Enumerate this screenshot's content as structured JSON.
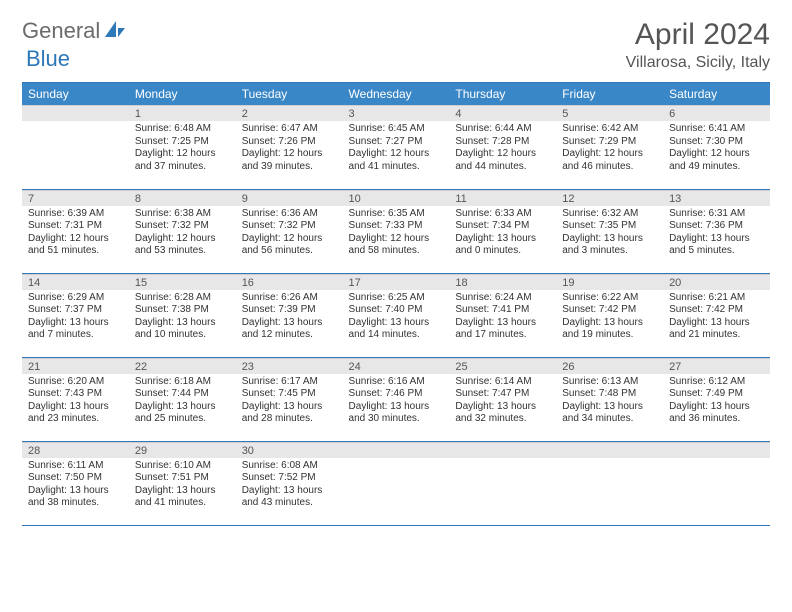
{
  "logo": {
    "text1": "General",
    "text2": "Blue"
  },
  "title": "April 2024",
  "location": "Villarosa, Sicily, Italy",
  "colors": {
    "header_bg": "#3a87c7",
    "border": "#2e77b8",
    "daynum_bg": "#e7e7e7",
    "text": "#333333",
    "logo_gray": "#6b6b6b",
    "logo_blue": "#2e77b8"
  },
  "weekdays": [
    "Sunday",
    "Monday",
    "Tuesday",
    "Wednesday",
    "Thursday",
    "Friday",
    "Saturday"
  ],
  "weeks": [
    [
      {
        "n": "",
        "lines": [
          "",
          "",
          "",
          ""
        ]
      },
      {
        "n": "1",
        "lines": [
          "Sunrise: 6:48 AM",
          "Sunset: 7:25 PM",
          "Daylight: 12 hours",
          "and 37 minutes."
        ]
      },
      {
        "n": "2",
        "lines": [
          "Sunrise: 6:47 AM",
          "Sunset: 7:26 PM",
          "Daylight: 12 hours",
          "and 39 minutes."
        ]
      },
      {
        "n": "3",
        "lines": [
          "Sunrise: 6:45 AM",
          "Sunset: 7:27 PM",
          "Daylight: 12 hours",
          "and 41 minutes."
        ]
      },
      {
        "n": "4",
        "lines": [
          "Sunrise: 6:44 AM",
          "Sunset: 7:28 PM",
          "Daylight: 12 hours",
          "and 44 minutes."
        ]
      },
      {
        "n": "5",
        "lines": [
          "Sunrise: 6:42 AM",
          "Sunset: 7:29 PM",
          "Daylight: 12 hours",
          "and 46 minutes."
        ]
      },
      {
        "n": "6",
        "lines": [
          "Sunrise: 6:41 AM",
          "Sunset: 7:30 PM",
          "Daylight: 12 hours",
          "and 49 minutes."
        ]
      }
    ],
    [
      {
        "n": "7",
        "lines": [
          "Sunrise: 6:39 AM",
          "Sunset: 7:31 PM",
          "Daylight: 12 hours",
          "and 51 minutes."
        ]
      },
      {
        "n": "8",
        "lines": [
          "Sunrise: 6:38 AM",
          "Sunset: 7:32 PM",
          "Daylight: 12 hours",
          "and 53 minutes."
        ]
      },
      {
        "n": "9",
        "lines": [
          "Sunrise: 6:36 AM",
          "Sunset: 7:32 PM",
          "Daylight: 12 hours",
          "and 56 minutes."
        ]
      },
      {
        "n": "10",
        "lines": [
          "Sunrise: 6:35 AM",
          "Sunset: 7:33 PM",
          "Daylight: 12 hours",
          "and 58 minutes."
        ]
      },
      {
        "n": "11",
        "lines": [
          "Sunrise: 6:33 AM",
          "Sunset: 7:34 PM",
          "Daylight: 13 hours",
          "and 0 minutes."
        ]
      },
      {
        "n": "12",
        "lines": [
          "Sunrise: 6:32 AM",
          "Sunset: 7:35 PM",
          "Daylight: 13 hours",
          "and 3 minutes."
        ]
      },
      {
        "n": "13",
        "lines": [
          "Sunrise: 6:31 AM",
          "Sunset: 7:36 PM",
          "Daylight: 13 hours",
          "and 5 minutes."
        ]
      }
    ],
    [
      {
        "n": "14",
        "lines": [
          "Sunrise: 6:29 AM",
          "Sunset: 7:37 PM",
          "Daylight: 13 hours",
          "and 7 minutes."
        ]
      },
      {
        "n": "15",
        "lines": [
          "Sunrise: 6:28 AM",
          "Sunset: 7:38 PM",
          "Daylight: 13 hours",
          "and 10 minutes."
        ]
      },
      {
        "n": "16",
        "lines": [
          "Sunrise: 6:26 AM",
          "Sunset: 7:39 PM",
          "Daylight: 13 hours",
          "and 12 minutes."
        ]
      },
      {
        "n": "17",
        "lines": [
          "Sunrise: 6:25 AM",
          "Sunset: 7:40 PM",
          "Daylight: 13 hours",
          "and 14 minutes."
        ]
      },
      {
        "n": "18",
        "lines": [
          "Sunrise: 6:24 AM",
          "Sunset: 7:41 PM",
          "Daylight: 13 hours",
          "and 17 minutes."
        ]
      },
      {
        "n": "19",
        "lines": [
          "Sunrise: 6:22 AM",
          "Sunset: 7:42 PM",
          "Daylight: 13 hours",
          "and 19 minutes."
        ]
      },
      {
        "n": "20",
        "lines": [
          "Sunrise: 6:21 AM",
          "Sunset: 7:42 PM",
          "Daylight: 13 hours",
          "and 21 minutes."
        ]
      }
    ],
    [
      {
        "n": "21",
        "lines": [
          "Sunrise: 6:20 AM",
          "Sunset: 7:43 PM",
          "Daylight: 13 hours",
          "and 23 minutes."
        ]
      },
      {
        "n": "22",
        "lines": [
          "Sunrise: 6:18 AM",
          "Sunset: 7:44 PM",
          "Daylight: 13 hours",
          "and 25 minutes."
        ]
      },
      {
        "n": "23",
        "lines": [
          "Sunrise: 6:17 AM",
          "Sunset: 7:45 PM",
          "Daylight: 13 hours",
          "and 28 minutes."
        ]
      },
      {
        "n": "24",
        "lines": [
          "Sunrise: 6:16 AM",
          "Sunset: 7:46 PM",
          "Daylight: 13 hours",
          "and 30 minutes."
        ]
      },
      {
        "n": "25",
        "lines": [
          "Sunrise: 6:14 AM",
          "Sunset: 7:47 PM",
          "Daylight: 13 hours",
          "and 32 minutes."
        ]
      },
      {
        "n": "26",
        "lines": [
          "Sunrise: 6:13 AM",
          "Sunset: 7:48 PM",
          "Daylight: 13 hours",
          "and 34 minutes."
        ]
      },
      {
        "n": "27",
        "lines": [
          "Sunrise: 6:12 AM",
          "Sunset: 7:49 PM",
          "Daylight: 13 hours",
          "and 36 minutes."
        ]
      }
    ],
    [
      {
        "n": "28",
        "lines": [
          "Sunrise: 6:11 AM",
          "Sunset: 7:50 PM",
          "Daylight: 13 hours",
          "and 38 minutes."
        ]
      },
      {
        "n": "29",
        "lines": [
          "Sunrise: 6:10 AM",
          "Sunset: 7:51 PM",
          "Daylight: 13 hours",
          "and 41 minutes."
        ]
      },
      {
        "n": "30",
        "lines": [
          "Sunrise: 6:08 AM",
          "Sunset: 7:52 PM",
          "Daylight: 13 hours",
          "and 43 minutes."
        ]
      },
      {
        "n": "",
        "lines": [
          "",
          "",
          "",
          ""
        ]
      },
      {
        "n": "",
        "lines": [
          "",
          "",
          "",
          ""
        ]
      },
      {
        "n": "",
        "lines": [
          "",
          "",
          "",
          ""
        ]
      },
      {
        "n": "",
        "lines": [
          "",
          "",
          "",
          ""
        ]
      }
    ]
  ]
}
